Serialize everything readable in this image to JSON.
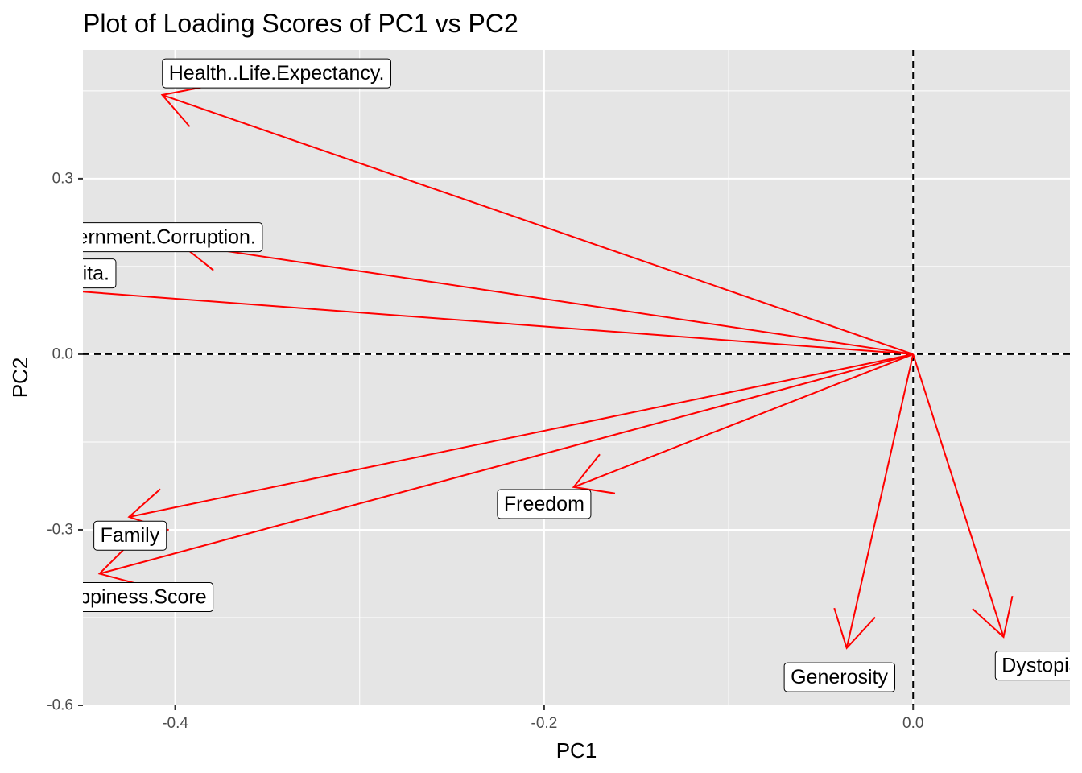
{
  "chart_data": {
    "type": "biplot-arrows",
    "title": "Plot of Loading Scores of PC1 vs PC2",
    "xlabel": "PC1",
    "ylabel": "PC2",
    "xlim": [
      -0.45,
      0.085
    ],
    "ylim": [
      -0.6,
      0.52
    ],
    "x_ticks": [
      -0.4,
      -0.2,
      0.0
    ],
    "x_tick_labels": [
      "-0.4",
      "-0.2",
      "0.0"
    ],
    "y_ticks": [
      -0.6,
      -0.3,
      0.0,
      0.3
    ],
    "y_tick_labels": [
      "-0.6",
      "-0.3",
      "0.0",
      "0.3"
    ],
    "grid": true,
    "reference_lines": {
      "x": 0,
      "y": 0,
      "style": "dashed"
    },
    "arrow_color": "#ff0000",
    "panel_background": "#e5e5e5",
    "grid_color": "#ffffff",
    "series": [
      {
        "name": "Health..Life.Expectancy.",
        "x": -0.407,
        "y": 0.443,
        "label_x": -0.345,
        "label_y": 0.48
      },
      {
        "name": "Trust..Government.Corruption.",
        "x": -0.397,
        "y": 0.188,
        "label_x": -0.43,
        "label_y": 0.2
      },
      {
        "name": "Economy..GDP.per.Capita.",
        "x": -0.497,
        "y": 0.118,
        "label_x": -0.5,
        "label_y": 0.138
      },
      {
        "name": "Freedom",
        "x": -0.184,
        "y": -0.227,
        "label_x": -0.2,
        "label_y": -0.256
      },
      {
        "name": "Family",
        "x": -0.425,
        "y": -0.278,
        "label_x": -0.4245,
        "label_y": -0.31
      },
      {
        "name": "Happiness.Score",
        "x": -0.441,
        "y": -0.375,
        "label_x": -0.4245,
        "label_y": -0.415
      },
      {
        "name": "Generosity",
        "x": -0.036,
        "y": -0.502,
        "label_x": -0.04,
        "label_y": -0.552
      },
      {
        "name": "Dystopia.Residual",
        "x": 0.049,
        "y": -0.483,
        "label_x": 0.092,
        "label_y": -0.532
      }
    ]
  }
}
